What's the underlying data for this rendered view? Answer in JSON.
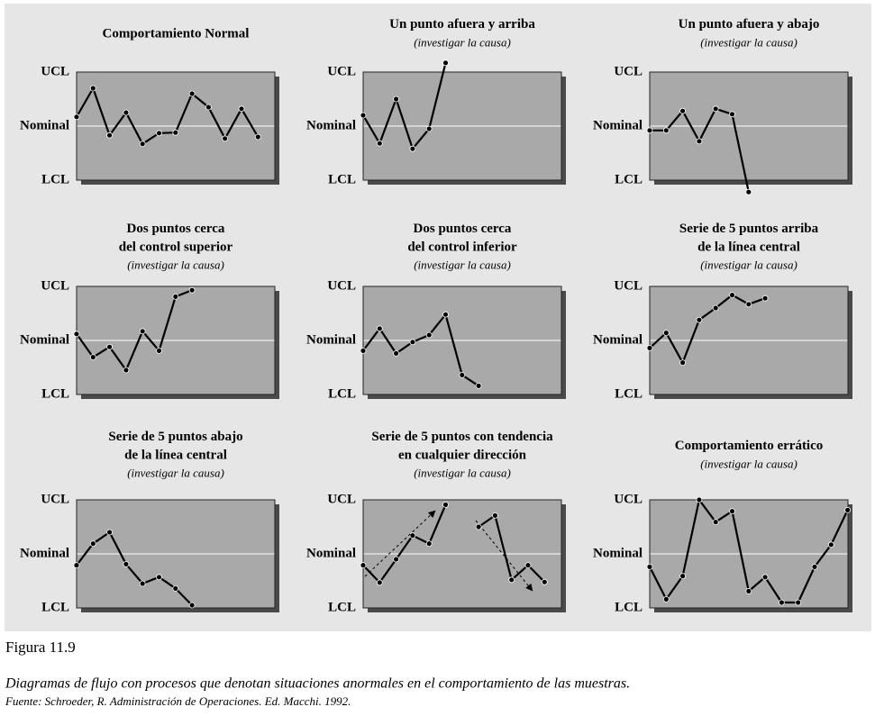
{
  "chart_data": [
    {
      "type": "line",
      "title": [
        "Comportamiento Normal"
      ],
      "values": [
        0.17,
        0.7,
        -0.17,
        0.25,
        -0.33,
        -0.13,
        -0.12,
        0.6,
        0.35,
        -0.23,
        0.32,
        -0.2
      ],
      "ylim": [
        -1,
        1
      ],
      "yticks": [
        {
          "value": 1,
          "label": "UCL"
        },
        {
          "value": 0,
          "label": "Nominal"
        },
        {
          "value": -1,
          "label": "LCL"
        }
      ],
      "color": "#000000"
    },
    {
      "type": "line",
      "title": [
        "Un punto afuera y arriba"
      ],
      "subtitle": "(investigar la causa)",
      "values": [
        0.2,
        -0.32,
        0.5,
        -0.42,
        -0.05,
        1.17
      ],
      "ylim": [
        -1,
        1
      ],
      "yticks": [
        {
          "value": 1,
          "label": "UCL"
        },
        {
          "value": 0,
          "label": "Nominal"
        },
        {
          "value": -1,
          "label": "LCL"
        }
      ],
      "color": "#000000"
    },
    {
      "type": "line",
      "title": [
        "Un punto afuera y abajo"
      ],
      "subtitle": "(investigar la causa)",
      "values": [
        -0.08,
        -0.08,
        0.28,
        -0.28,
        0.32,
        0.22,
        -1.22
      ],
      "ylim": [
        -1,
        1
      ],
      "yticks": [
        {
          "value": 1,
          "label": "UCL"
        },
        {
          "value": 0,
          "label": "Nominal"
        },
        {
          "value": -1,
          "label": "LCL"
        }
      ],
      "color": "#000000"
    },
    {
      "type": "line",
      "title": [
        "Dos puntos cerca",
        "del control superior"
      ],
      "subtitle": "(investigar la causa)",
      "values": [
        0.12,
        -0.31,
        -0.12,
        -0.55,
        0.17,
        -0.19,
        0.81,
        0.93
      ],
      "ylim": [
        -1,
        1
      ],
      "yticks": [
        {
          "value": 1,
          "label": "UCL"
        },
        {
          "value": 0,
          "label": "Nominal"
        },
        {
          "value": -1,
          "label": "LCL"
        }
      ],
      "color": "#000000"
    },
    {
      "type": "line",
      "title": [
        "Dos puntos cerca",
        "del control inferior"
      ],
      "subtitle": "(investigar la causa)",
      "values": [
        -0.19,
        0.22,
        -0.24,
        -0.03,
        0.1,
        0.48,
        -0.64,
        -0.84
      ],
      "ylim": [
        -1,
        1
      ],
      "yticks": [
        {
          "value": 1,
          "label": "UCL"
        },
        {
          "value": 0,
          "label": "Nominal"
        },
        {
          "value": -1,
          "label": "LCL"
        }
      ],
      "color": "#000000"
    },
    {
      "type": "line",
      "title": [
        "Serie de 5 puntos arriba",
        "de la línea central"
      ],
      "subtitle": "(investigar la causa)",
      "values": [
        -0.14,
        0.14,
        -0.41,
        0.38,
        0.6,
        0.84,
        0.67,
        0.78
      ],
      "ylim": [
        -1,
        1
      ],
      "yticks": [
        {
          "value": 1,
          "label": "UCL"
        },
        {
          "value": 0,
          "label": "Nominal"
        },
        {
          "value": -1,
          "label": "LCL"
        }
      ],
      "color": "#000000"
    },
    {
      "type": "line",
      "title": [
        "Serie de 5 puntos abajo",
        "de la línea central"
      ],
      "subtitle": "(investigar la causa)",
      "values": [
        -0.21,
        0.19,
        0.4,
        -0.19,
        -0.55,
        -0.43,
        -0.64,
        -0.95
      ],
      "ylim": [
        -1,
        1
      ],
      "yticks": [
        {
          "value": 1,
          "label": "UCL"
        },
        {
          "value": 0,
          "label": "Nominal"
        },
        {
          "value": -1,
          "label": "LCL"
        }
      ],
      "color": "#000000"
    },
    {
      "type": "line",
      "title": [
        "Serie de 5 puntos con tendencia",
        "en cualquier dirección"
      ],
      "subtitle": "(investigar la causa)",
      "values": [
        -0.21,
        -0.53,
        -0.1,
        0.34,
        0.19,
        0.91,
        null,
        0.5,
        0.71,
        -0.48,
        -0.21,
        -0.52
      ],
      "ylim": [
        -1,
        1
      ],
      "yticks": [
        {
          "value": 1,
          "label": "UCL"
        },
        {
          "value": 0,
          "label": "Nominal"
        },
        {
          "value": -1,
          "label": "LCL"
        }
      ],
      "color": "#000000"
    },
    {
      "type": "line",
      "title": [
        "Comportamiento errático"
      ],
      "subtitle": "(investigar la causa)",
      "values": [
        -0.24,
        -0.84,
        -0.41,
        1.0,
        0.59,
        0.79,
        -0.69,
        -0.43,
        -0.9,
        -0.9,
        -0.24,
        0.17,
        0.81
      ],
      "ylim": [
        -1,
        1
      ],
      "yticks": [
        {
          "value": 1,
          "label": "UCL"
        },
        {
          "value": 0,
          "label": "Nominal"
        },
        {
          "value": -1,
          "label": "LCL"
        }
      ],
      "color": "#000000"
    }
  ],
  "figure": {
    "label": "Figura 11.9",
    "caption": "Diagramas de flujo con procesos que denotan situaciones anormales en el comportamiento de las muestras.",
    "source": "Fuente: Schroeder, R. Administración de Operaciones. Ed. Macchi. 1992."
  }
}
